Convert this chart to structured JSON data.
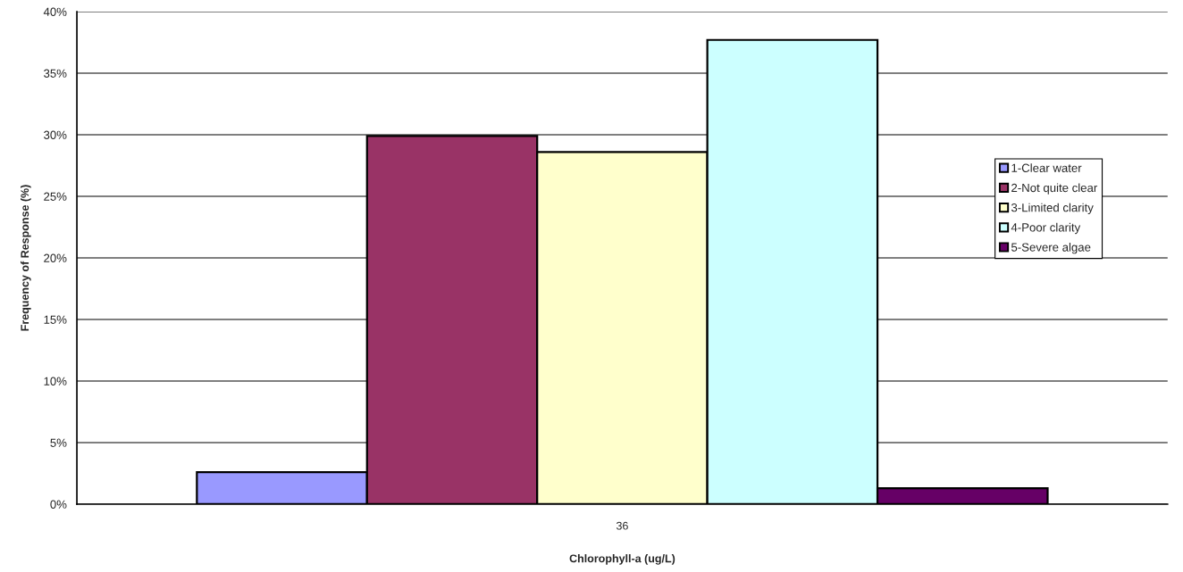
{
  "chart_data": {
    "type": "bar",
    "xlabel": "Chlorophyll-a (ug/L)",
    "ylabel": "Frequency of Response (%)",
    "categories": [
      "36"
    ],
    "series": [
      {
        "name": "1-Clear water",
        "color": "#9999ff",
        "values": [
          2.6
        ]
      },
      {
        "name": "2-Not quite clear",
        "color": "#993366",
        "values": [
          29.9
        ]
      },
      {
        "name": "3-Limited clarity",
        "color": "#ffffcc",
        "values": [
          28.6
        ]
      },
      {
        "name": "4-Poor clarity",
        "color": "#ccffff",
        "values": [
          37.7
        ]
      },
      {
        "name": "5-Severe algae",
        "color": "#660066",
        "values": [
          1.3
        ]
      }
    ],
    "ylim": [
      0,
      40
    ],
    "yticks": [
      {
        "value": 0,
        "label": "0%"
      },
      {
        "value": 5,
        "label": "5%"
      },
      {
        "value": 10,
        "label": "10%"
      },
      {
        "value": 15,
        "label": "15%"
      },
      {
        "value": 20,
        "label": "20%"
      },
      {
        "value": 25,
        "label": "25%"
      },
      {
        "value": 30,
        "label": "30%"
      },
      {
        "value": 35,
        "label": "35%"
      },
      {
        "value": 40,
        "label": "40%"
      }
    ],
    "grid": "y",
    "legend": "right"
  }
}
